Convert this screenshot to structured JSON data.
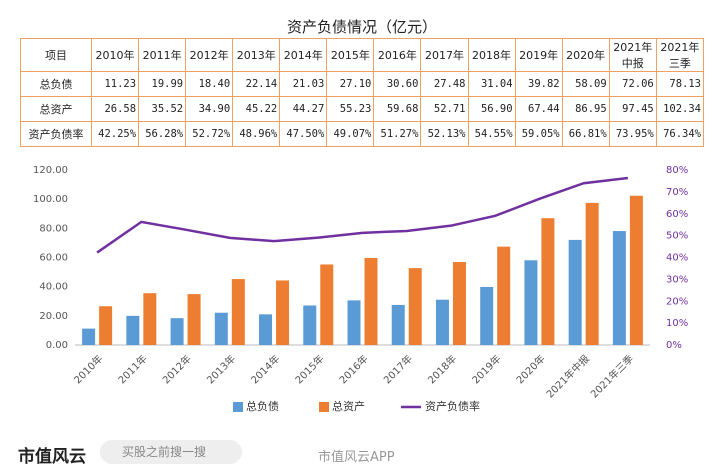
{
  "table": {
    "title": "资产负债情况（亿元）",
    "header": [
      "项目",
      "2010年",
      "2011年",
      "2012年",
      "2013年",
      "2014年",
      "2015年",
      "2016年",
      "2017年",
      "2018年",
      "2019年",
      "2020年",
      "2021年中报",
      "2021年三季"
    ],
    "rows": [
      [
        "总负债",
        "11.23",
        "19.99",
        "18.40",
        "22.14",
        "21.03",
        "27.10",
        "30.60",
        "27.48",
        "31.04",
        "39.82",
        "58.09",
        "72.06",
        "78.13"
      ],
      [
        "总资产",
        "26.58",
        "35.52",
        "34.90",
        "45.22",
        "44.27",
        "55.23",
        "59.68",
        "52.71",
        "56.90",
        "67.44",
        "86.95",
        "97.45",
        "102.34"
      ],
      [
        "资产负债率",
        "42.25%",
        "56.28%",
        "52.72%",
        "48.96%",
        "47.50%",
        "49.07%",
        "51.27%",
        "52.13%",
        "54.55%",
        "59.05%",
        "66.81%",
        "73.95%",
        "76.34%"
      ]
    ]
  },
  "chart_data": {
    "type": "bar",
    "categories": [
      "2010年",
      "2011年",
      "2012年",
      "2013年",
      "2014年",
      "2015年",
      "2016年",
      "2017年",
      "2018年",
      "2019年",
      "2020年",
      "2021年中报",
      "2021年三季"
    ],
    "series": [
      {
        "name": "总负债",
        "color": "#5b9bd5",
        "type": "bar",
        "values": [
          11.23,
          19.99,
          18.4,
          22.14,
          21.03,
          27.1,
          30.6,
          27.48,
          31.04,
          39.82,
          58.09,
          72.06,
          78.13
        ]
      },
      {
        "name": "总资产",
        "color": "#ed7d31",
        "type": "bar",
        "values": [
          26.58,
          35.52,
          34.9,
          45.22,
          44.27,
          55.23,
          59.68,
          52.71,
          56.9,
          67.44,
          86.95,
          97.45,
          102.34
        ]
      },
      {
        "name": "资产负债率",
        "color": "#7030a0",
        "type": "line",
        "axis": "y2",
        "values": [
          42.25,
          56.28,
          52.72,
          48.96,
          47.5,
          49.07,
          51.27,
          52.13,
          54.55,
          59.05,
          66.81,
          73.95,
          76.34
        ]
      }
    ],
    "ylim": [
      0,
      120
    ],
    "yticks": [
      {
        "value": 0,
        "label": "0.00"
      },
      {
        "value": 20,
        "label": "20.00"
      },
      {
        "value": 40,
        "label": "40.00"
      },
      {
        "value": 60,
        "label": "60.00"
      },
      {
        "value": 80,
        "label": "80.00"
      },
      {
        "value": 100,
        "label": "100.00"
      },
      {
        "value": 120,
        "label": "120.00"
      }
    ],
    "y2lim": [
      0,
      80
    ],
    "y2ticks": [
      {
        "value": 0,
        "label": "0%"
      },
      {
        "value": 10,
        "label": "10%"
      },
      {
        "value": 20,
        "label": "20%"
      },
      {
        "value": 30,
        "label": "30%"
      },
      {
        "value": 40,
        "label": "40%"
      },
      {
        "value": 50,
        "label": "50%"
      },
      {
        "value": 60,
        "label": "60%"
      },
      {
        "value": 70,
        "label": "70%"
      },
      {
        "value": 80,
        "label": "80%"
      }
    ],
    "legend": "bottom"
  },
  "footer": {
    "logo": "市值风云",
    "search": "买股之前搜一搜",
    "watermark": "市值风云APP"
  }
}
